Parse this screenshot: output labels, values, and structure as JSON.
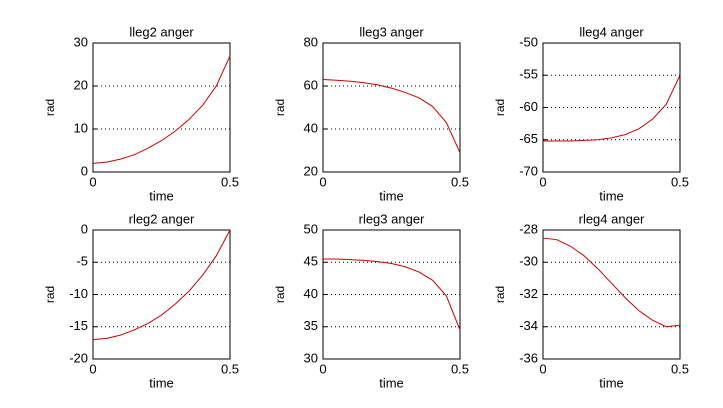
{
  "chart_data": [
    {
      "type": "line",
      "title": "lleg2 anger",
      "xlabel": "time",
      "ylabel": "rad",
      "x": [
        0,
        0.05,
        0.1,
        0.15,
        0.2,
        0.25,
        0.3,
        0.35,
        0.4,
        0.45,
        0.5
      ],
      "series": [
        {
          "color": "#cc0000",
          "values": [
            2,
            2.3,
            3,
            4,
            5.5,
            7.3,
            9.5,
            12.2,
            15.5,
            20,
            27
          ]
        }
      ],
      "xlim": [
        0,
        0.5
      ],
      "xticks": [
        0,
        0.5
      ],
      "ylim": [
        0,
        30
      ],
      "yticks": [
        0,
        10,
        20,
        30
      ],
      "grid": "y"
    },
    {
      "type": "line",
      "title": "lleg3 anger",
      "xlabel": "time",
      "ylabel": "rad",
      "x": [
        0,
        0.05,
        0.1,
        0.15,
        0.2,
        0.25,
        0.3,
        0.35,
        0.4,
        0.45,
        0.5
      ],
      "series": [
        {
          "color": "#cc0000",
          "values": [
            63,
            62.7,
            62.2,
            61.5,
            60.5,
            59,
            57,
            54.5,
            50.5,
            43,
            29
          ]
        }
      ],
      "xlim": [
        0,
        0.5
      ],
      "xticks": [
        0,
        0.5
      ],
      "ylim": [
        20,
        80
      ],
      "yticks": [
        20,
        40,
        60,
        80
      ],
      "grid": "y"
    },
    {
      "type": "line",
      "title": "lleg4 anger",
      "xlabel": "time",
      "ylabel": "rad",
      "x": [
        0,
        0.05,
        0.1,
        0.15,
        0.2,
        0.25,
        0.3,
        0.35,
        0.4,
        0.45,
        0.5
      ],
      "series": [
        {
          "color": "#cc0000",
          "values": [
            -65.2,
            -65.2,
            -65.2,
            -65.1,
            -65,
            -64.7,
            -64.2,
            -63.3,
            -61.8,
            -59.5,
            -55
          ]
        }
      ],
      "xlim": [
        0,
        0.5
      ],
      "xticks": [
        0,
        0.5
      ],
      "ylim": [
        -70,
        -50
      ],
      "yticks": [
        -70,
        -65,
        -60,
        -55,
        -50
      ],
      "grid": "y"
    },
    {
      "type": "line",
      "title": "rleg2 anger",
      "xlabel": "time",
      "ylabel": "rad",
      "x": [
        0,
        0.05,
        0.1,
        0.15,
        0.2,
        0.25,
        0.3,
        0.35,
        0.4,
        0.45,
        0.5
      ],
      "series": [
        {
          "color": "#cc0000",
          "values": [
            -17,
            -16.8,
            -16.3,
            -15.5,
            -14.5,
            -13.2,
            -11.5,
            -9.5,
            -7,
            -4,
            0
          ]
        }
      ],
      "xlim": [
        0,
        0.5
      ],
      "xticks": [
        0,
        0.5
      ],
      "ylim": [
        -20,
        0
      ],
      "yticks": [
        -20,
        -15,
        -10,
        -5,
        0
      ],
      "grid": "y"
    },
    {
      "type": "line",
      "title": "rleg3 anger",
      "xlabel": "time",
      "ylabel": "rad",
      "x": [
        0,
        0.05,
        0.1,
        0.15,
        0.2,
        0.25,
        0.3,
        0.35,
        0.4,
        0.45,
        0.5
      ],
      "series": [
        {
          "color": "#cc0000",
          "values": [
            45.5,
            45.5,
            45.4,
            45.3,
            45.1,
            44.8,
            44.3,
            43.5,
            42.2,
            39.8,
            34.5
          ]
        }
      ],
      "xlim": [
        0,
        0.5
      ],
      "xticks": [
        0,
        0.5
      ],
      "ylim": [
        30,
        50
      ],
      "yticks": [
        30,
        35,
        40,
        45,
        50
      ],
      "grid": "y"
    },
    {
      "type": "line",
      "title": "rleg4 anger",
      "xlabel": "time",
      "ylabel": "rad",
      "x": [
        0,
        0.05,
        0.1,
        0.15,
        0.2,
        0.25,
        0.3,
        0.35,
        0.4,
        0.45,
        0.5
      ],
      "series": [
        {
          "color": "#cc0000",
          "values": [
            -28.5,
            -28.6,
            -29,
            -29.6,
            -30.4,
            -31.3,
            -32.2,
            -33,
            -33.6,
            -34,
            -33.9
          ]
        }
      ],
      "xlim": [
        0,
        0.5
      ],
      "xticks": [
        0,
        0.5
      ],
      "ylim": [
        -36,
        -28
      ],
      "yticks": [
        -36,
        -34,
        -32,
        -30,
        -28
      ],
      "grid": "y"
    }
  ]
}
